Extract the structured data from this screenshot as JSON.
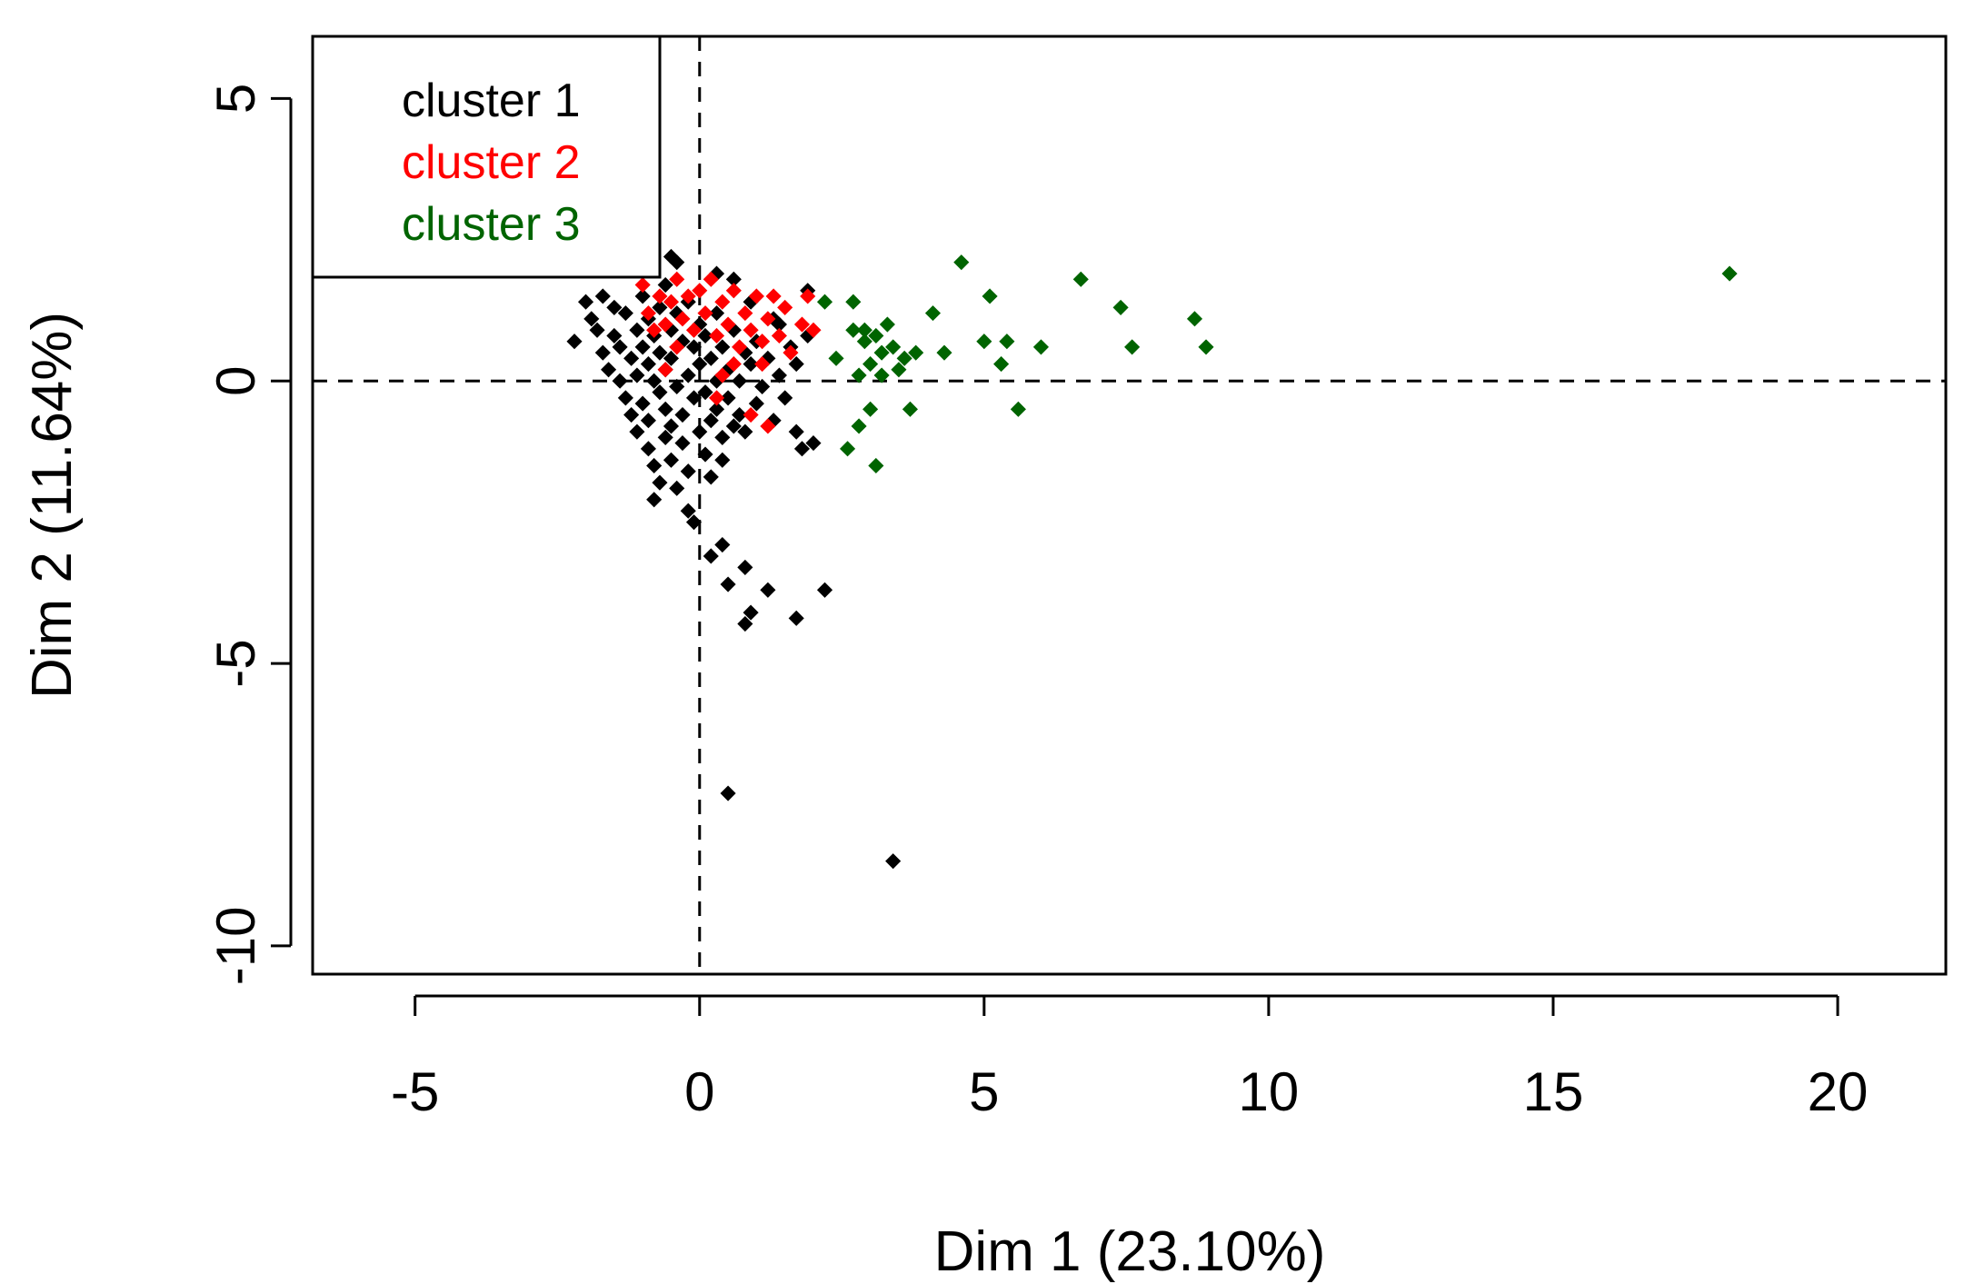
{
  "chart_data": {
    "type": "scatter",
    "title": "",
    "xlabel": "Dim 1 (23.10%)",
    "ylabel": "Dim 2 (11.64%)",
    "xlim": [
      -6.8,
      21.9
    ],
    "ylim": [
      -10.5,
      6.1
    ],
    "x_ticks": [
      -5,
      0,
      5,
      10,
      15,
      20
    ],
    "y_ticks": [
      -10,
      -5,
      0,
      5
    ],
    "reference_lines": {
      "x": 0,
      "y": 0,
      "style": "dashed"
    },
    "grid": false,
    "legend": {
      "position": "top-left",
      "entries": [
        {
          "label": "cluster 1",
          "color": "#000000"
        },
        {
          "label": "cluster 2",
          "color": "#ff0000"
        },
        {
          "label": "cluster 3",
          "color": "#006400"
        }
      ]
    },
    "series": [
      {
        "name": "cluster 1",
        "color": "#000000",
        "points": [
          [
            -2.2,
            0.7
          ],
          [
            -2.0,
            1.4
          ],
          [
            -1.9,
            1.1
          ],
          [
            -1.8,
            0.9
          ],
          [
            -1.7,
            0.5
          ],
          [
            -1.7,
            1.5
          ],
          [
            -1.6,
            0.2
          ],
          [
            -1.5,
            1.3
          ],
          [
            -1.5,
            0.8
          ],
          [
            -1.4,
            0.0
          ],
          [
            -1.4,
            0.6
          ],
          [
            -1.3,
            -0.3
          ],
          [
            -1.3,
            1.2
          ],
          [
            -1.2,
            0.4
          ],
          [
            -1.2,
            -0.6
          ],
          [
            -1.1,
            0.9
          ],
          [
            -1.1,
            -0.9
          ],
          [
            -1.1,
            0.1
          ],
          [
            -1.0,
            1.5
          ],
          [
            -1.0,
            -0.4
          ],
          [
            -1.0,
            0.6
          ],
          [
            -0.9,
            -1.2
          ],
          [
            -0.9,
            0.3
          ],
          [
            -0.9,
            1.1
          ],
          [
            -0.9,
            -0.7
          ],
          [
            -0.8,
            -1.5
          ],
          [
            -0.8,
            0.0
          ],
          [
            -0.8,
            0.8
          ],
          [
            -0.8,
            -2.1
          ],
          [
            -0.7,
            -1.8
          ],
          [
            -0.7,
            -0.2
          ],
          [
            -0.7,
            1.3
          ],
          [
            -0.7,
            0.5
          ],
          [
            -0.6,
            -1.0
          ],
          [
            -0.6,
            -0.5
          ],
          [
            -0.6,
            0.2
          ],
          [
            -0.6,
            1.7
          ],
          [
            -0.5,
            -1.4
          ],
          [
            -0.5,
            -0.8
          ],
          [
            -0.5,
            0.4
          ],
          [
            -0.5,
            0.9
          ],
          [
            -0.4,
            -0.1
          ],
          [
            -0.4,
            -1.9
          ],
          [
            -0.4,
            1.2
          ],
          [
            -0.4,
            2.1
          ],
          [
            -0.3,
            -0.6
          ],
          [
            -0.3,
            0.7
          ],
          [
            -0.3,
            -1.1
          ],
          [
            -0.2,
            0.1
          ],
          [
            -0.2,
            -2.3
          ],
          [
            -0.2,
            1.4
          ],
          [
            -0.2,
            -1.6
          ],
          [
            -0.1,
            -0.3
          ],
          [
            -0.1,
            0.6
          ],
          [
            -0.1,
            -2.5
          ],
          [
            0.0,
            -0.9
          ],
          [
            0.0,
            0.3
          ],
          [
            0.0,
            1.0
          ],
          [
            0.1,
            -1.3
          ],
          [
            0.1,
            -0.2
          ],
          [
            0.1,
            0.8
          ],
          [
            0.2,
            -0.7
          ],
          [
            0.2,
            0.4
          ],
          [
            0.2,
            -1.7
          ],
          [
            0.3,
            0.0
          ],
          [
            0.3,
            1.2
          ],
          [
            0.3,
            -0.5
          ],
          [
            0.4,
            -1.0
          ],
          [
            0.4,
            0.6
          ],
          [
            0.4,
            -1.4
          ],
          [
            0.5,
            0.2
          ],
          [
            0.5,
            -0.3
          ],
          [
            0.6,
            -0.8
          ],
          [
            0.6,
            0.9
          ],
          [
            0.7,
            0.0
          ],
          [
            0.7,
            -0.6
          ],
          [
            0.8,
            0.5
          ],
          [
            0.8,
            -0.9
          ],
          [
            0.9,
            0.3
          ],
          [
            1.0,
            -0.4
          ],
          [
            1.0,
            0.7
          ],
          [
            1.1,
            -0.1
          ],
          [
            1.2,
            0.4
          ],
          [
            1.3,
            -0.7
          ],
          [
            1.4,
            0.1
          ],
          [
            1.5,
            -0.3
          ],
          [
            1.6,
            0.6
          ],
          [
            1.7,
            -0.9
          ],
          [
            1.8,
            -1.2
          ],
          [
            1.7,
            0.3
          ],
          [
            1.9,
            0.8
          ],
          [
            2.0,
            -1.1
          ],
          [
            1.4,
            1.0
          ],
          [
            1.9,
            1.6
          ],
          [
            0.9,
            1.4
          ],
          [
            0.4,
            -2.9
          ],
          [
            0.2,
            -3.1
          ],
          [
            0.5,
            -3.6
          ],
          [
            0.8,
            -3.3
          ],
          [
            1.2,
            -3.7
          ],
          [
            0.9,
            -4.1
          ],
          [
            0.8,
            -4.3
          ],
          [
            1.7,
            -4.2
          ],
          [
            2.2,
            -3.7
          ],
          [
            0.5,
            -7.3
          ],
          [
            3.4,
            -8.5
          ],
          [
            0.6,
            1.8
          ],
          [
            1.3,
            1.1
          ],
          [
            0.3,
            1.9
          ],
          [
            -0.5,
            2.2
          ]
        ]
      },
      {
        "name": "cluster 2",
        "color": "#ff0000",
        "points": [
          [
            -1.0,
            1.7
          ],
          [
            -0.9,
            1.2
          ],
          [
            -0.7,
            1.5
          ],
          [
            -0.6,
            1.0
          ],
          [
            -0.5,
            1.4
          ],
          [
            -0.4,
            1.8
          ],
          [
            -0.3,
            1.1
          ],
          [
            -0.2,
            1.5
          ],
          [
            -0.1,
            0.9
          ],
          [
            0.0,
            1.6
          ],
          [
            0.1,
            1.2
          ],
          [
            0.2,
            1.8
          ],
          [
            0.3,
            0.8
          ],
          [
            0.4,
            1.4
          ],
          [
            0.5,
            1.0
          ],
          [
            0.6,
            1.6
          ],
          [
            0.7,
            0.6
          ],
          [
            0.8,
            1.2
          ],
          [
            0.9,
            0.9
          ],
          [
            1.0,
            1.5
          ],
          [
            1.1,
            0.7
          ],
          [
            1.2,
            1.1
          ],
          [
            1.3,
            1.5
          ],
          [
            1.4,
            0.8
          ],
          [
            1.5,
            1.3
          ],
          [
            1.6,
            0.5
          ],
          [
            1.8,
            1.0
          ],
          [
            1.9,
            1.5
          ],
          [
            2.0,
            0.9
          ],
          [
            0.6,
            0.3
          ],
          [
            0.9,
            -0.6
          ],
          [
            1.2,
            -0.8
          ],
          [
            0.4,
            0.1
          ],
          [
            -0.6,
            0.2
          ],
          [
            -0.4,
            0.6
          ],
          [
            -0.8,
            0.9
          ],
          [
            1.1,
            0.3
          ],
          [
            0.3,
            -0.3
          ]
        ]
      },
      {
        "name": "cluster 3",
        "color": "#006400",
        "points": [
          [
            2.2,
            1.4
          ],
          [
            2.4,
            0.4
          ],
          [
            2.6,
            -1.2
          ],
          [
            2.7,
            0.9
          ],
          [
            2.7,
            1.4
          ],
          [
            2.8,
            0.1
          ],
          [
            2.8,
            -0.8
          ],
          [
            2.9,
            0.7
          ],
          [
            3.0,
            -0.5
          ],
          [
            3.0,
            0.3
          ],
          [
            3.1,
            -1.5
          ],
          [
            3.1,
            0.8
          ],
          [
            3.2,
            0.1
          ],
          [
            3.3,
            1.0
          ],
          [
            3.4,
            0.6
          ],
          [
            3.5,
            0.2
          ],
          [
            3.6,
            0.4
          ],
          [
            3.7,
            -0.5
          ],
          [
            3.8,
            0.5
          ],
          [
            4.1,
            1.2
          ],
          [
            4.3,
            0.5
          ],
          [
            4.6,
            2.1
          ],
          [
            5.0,
            0.7
          ],
          [
            5.1,
            1.5
          ],
          [
            5.3,
            0.3
          ],
          [
            5.4,
            0.7
          ],
          [
            5.6,
            -0.5
          ],
          [
            6.0,
            0.6
          ],
          [
            6.7,
            1.8
          ],
          [
            7.4,
            1.3
          ],
          [
            7.6,
            0.6
          ],
          [
            8.7,
            1.1
          ],
          [
            8.9,
            0.6
          ],
          [
            18.1,
            1.9
          ],
          [
            2.9,
            0.9
          ],
          [
            3.2,
            0.5
          ]
        ]
      }
    ]
  }
}
